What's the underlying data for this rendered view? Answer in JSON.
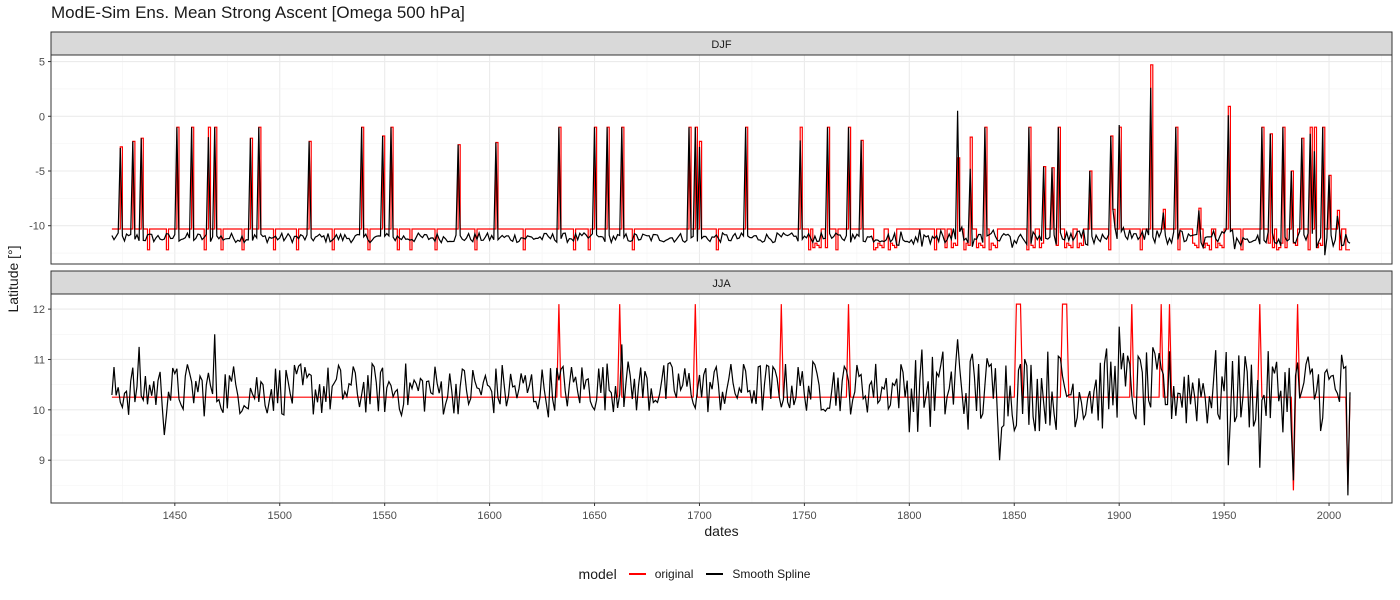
{
  "chart_data": {
    "type": "line",
    "title": "ModE-Sim Ens. Mean Strong Ascent [Omega 500 hPa]",
    "xlabel": "dates",
    "ylabel": "Latitude [°]",
    "xlim": [
      1391,
      2030
    ],
    "x_ticks": [
      "1450",
      "1500",
      "1550",
      "1600",
      "1650",
      "1700",
      "1750",
      "1800",
      "1850",
      "1900",
      "1950",
      "2000"
    ],
    "grid": true,
    "legend": {
      "title": "model",
      "position": "bottom"
    },
    "series_styles": [
      {
        "name": "original",
        "color": "#ff0000"
      },
      {
        "name": "Smooth Spline",
        "color": "#000000"
      }
    ],
    "panels": [
      {
        "label": "DJF",
        "ylim": [
          -13.5,
          5.6
        ],
        "y_ticks": [
          5,
          0,
          -5,
          -10
        ],
        "y_tick_labels": [
          "5",
          "0",
          "-5",
          "-10"
        ],
        "original": {
          "baseline": -10.3,
          "low_dips": [
            1437,
            1446,
            1464,
            1472,
            1482,
            1497,
            1508,
            1525,
            1542,
            1556,
            1562,
            1574,
            1593,
            1616,
            1640,
            1647,
            1668,
            1708,
            1752,
            1765,
            1783,
            1790,
            1812,
            1826,
            1838,
            1856,
            1871,
            1886,
            1895,
            1910,
            1928,
            1943,
            1958,
            1975,
            1990,
            2005
          ],
          "low_blocks": [
            [
              1752,
              1760
            ],
            [
              1783,
              1793
            ],
            [
              1817,
              1843
            ],
            [
              1856,
              1863
            ],
            [
              1870,
              1882
            ],
            [
              1935,
              1952
            ],
            [
              1971,
              1984
            ],
            [
              1992,
              2000
            ]
          ],
          "spikes": [
            [
              1424,
              -2.8
            ],
            [
              1430,
              -2.3
            ],
            [
              1434,
              -2.0
            ],
            [
              1451,
              -1.0
            ],
            [
              1458,
              -1.0
            ],
            [
              1466,
              -1.0
            ],
            [
              1469,
              -1.0
            ],
            [
              1486,
              -2.0
            ],
            [
              1490,
              -1.0
            ],
            [
              1514,
              -2.3
            ],
            [
              1539,
              -1.0
            ],
            [
              1549,
              -1.8
            ],
            [
              1553,
              -1.0
            ],
            [
              1585,
              -2.6
            ],
            [
              1603,
              -2.4
            ],
            [
              1633,
              -1.0
            ],
            [
              1650,
              -1.0
            ],
            [
              1656,
              -1.0
            ],
            [
              1663,
              -1.0
            ],
            [
              1695,
              -1.0
            ],
            [
              1698,
              -1.0
            ],
            [
              1700,
              -2.3
            ],
            [
              1722,
              -1.0
            ],
            [
              1748,
              -1.0
            ],
            [
              1761,
              -1.0
            ],
            [
              1771,
              -1.0
            ],
            [
              1777,
              -2.2
            ],
            [
              1823,
              -3.8
            ],
            [
              1829,
              -1.9
            ],
            [
              1836,
              -1.0
            ],
            [
              1857,
              -1.0
            ],
            [
              1864,
              -4.6
            ],
            [
              1868,
              -4.7
            ],
            [
              1871,
              -1.0
            ],
            [
              1886,
              -5.0
            ],
            [
              1896,
              -1.8
            ],
            [
              1900,
              -1.0
            ],
            [
              1915,
              4.7
            ],
            [
              1927,
              -1.0
            ],
            [
              1952,
              0.9
            ],
            [
              1968,
              -1.0
            ],
            [
              1972,
              -1.6
            ],
            [
              1978,
              -1.0
            ],
            [
              1982,
              -5.0
            ],
            [
              1987,
              -2.0
            ],
            [
              1991,
              -1.0
            ],
            [
              1993,
              -1.0
            ],
            [
              1997,
              -1.0
            ],
            [
              2000,
              -5.4
            ]
          ],
          "smaller_bumps": [
            [
              1897,
              -8.5
            ],
            [
              1921,
              -8.5
            ],
            [
              1938,
              -8.4
            ],
            [
              2004,
              -8.6
            ]
          ]
        },
        "spline": {
          "baseline": -11.1,
          "spikes": [
            [
              1424,
              -2.9
            ],
            [
              1430,
              -2.3
            ],
            [
              1434,
              -2.0
            ],
            [
              1451,
              -1.0
            ],
            [
              1458,
              -1.0
            ],
            [
              1466,
              -1.9
            ],
            [
              1469,
              -1.0
            ],
            [
              1486,
              -2.0
            ],
            [
              1490,
              -1.0
            ],
            [
              1514,
              -2.3
            ],
            [
              1539,
              -1.0
            ],
            [
              1549,
              -1.8
            ],
            [
              1553,
              -1.0
            ],
            [
              1585,
              -2.6
            ],
            [
              1603,
              -2.4
            ],
            [
              1633,
              -1.0
            ],
            [
              1650,
              -1.0
            ],
            [
              1656,
              -1.0
            ],
            [
              1663,
              -1.0
            ],
            [
              1695,
              -1.0
            ],
            [
              1698,
              -1.0
            ],
            [
              1700,
              -2.8
            ],
            [
              1722,
              -1.0
            ],
            [
              1748,
              -2.2
            ],
            [
              1761,
              -1.0
            ],
            [
              1771,
              -1.0
            ],
            [
              1777,
              -2.2
            ],
            [
              1823,
              0.5
            ],
            [
              1829,
              -4.8
            ],
            [
              1836,
              -1.0
            ],
            [
              1857,
              -1.0
            ],
            [
              1864,
              -4.6
            ],
            [
              1868,
              -4.7
            ],
            [
              1871,
              -1.0
            ],
            [
              1886,
              -5.0
            ],
            [
              1896,
              -1.8
            ],
            [
              1900,
              -0.8
            ],
            [
              1915,
              2.6
            ],
            [
              1927,
              -1.0
            ],
            [
              1952,
              0.1
            ],
            [
              1968,
              -1.0
            ],
            [
              1972,
              -1.6
            ],
            [
              1978,
              -1.0
            ],
            [
              1982,
              -5.0
            ],
            [
              1987,
              -2.0
            ],
            [
              1991,
              -1.6
            ],
            [
              1993,
              -3.2
            ],
            [
              1997,
              -1.0
            ],
            [
              2000,
              -5.4
            ]
          ],
          "smaller_bumps": [
            [
              1897,
              -8.5
            ],
            [
              1921,
              -8.8
            ],
            [
              1938,
              -8.6
            ],
            [
              2004,
              -9.1
            ]
          ]
        }
      },
      {
        "label": "JJA",
        "ylim": [
          8.15,
          12.3
        ],
        "y_ticks": [
          12,
          11,
          10,
          9
        ],
        "y_tick_labels": [
          "12",
          "11",
          "10",
          "9"
        ],
        "original": {
          "baseline": 10.25,
          "spikes": [
            [
              1633,
              12.1
            ],
            [
              1662,
              12.1
            ],
            [
              1698,
              12.1
            ],
            [
              1739,
              12.1
            ],
            [
              1771,
              12.1
            ],
            [
              1851,
              12.1
            ],
            [
              1852,
              12.1
            ],
            [
              1853,
              12.1
            ],
            [
              1873,
              12.1
            ],
            [
              1874,
              12.1
            ],
            [
              1875,
              12.1
            ],
            [
              1906,
              12.1
            ],
            [
              1920,
              12.1
            ],
            [
              1924,
              12.1
            ],
            [
              1967,
              12.1
            ],
            [
              1985,
              12.1
            ]
          ],
          "dips": [
            [
              1983,
              8.4
            ],
            [
              2009,
              8.5
            ]
          ]
        },
        "spline": {
          "x_start": 1420,
          "x_end": 2010,
          "mean": 10.4,
          "notable_points": [
            [
              1433,
              11.25
            ],
            [
              1445,
              9.5
            ],
            [
              1469,
              11.5
            ],
            [
              1663,
              11.3
            ],
            [
              1823,
              11.4
            ],
            [
              1843,
              9.0
            ],
            [
              1900,
              11.65
            ],
            [
              1952,
              8.9
            ],
            [
              1967,
              8.85
            ],
            [
              1983,
              8.6
            ],
            [
              2009,
              8.3
            ],
            [
              2010,
              10.35
            ]
          ]
        }
      }
    ]
  }
}
